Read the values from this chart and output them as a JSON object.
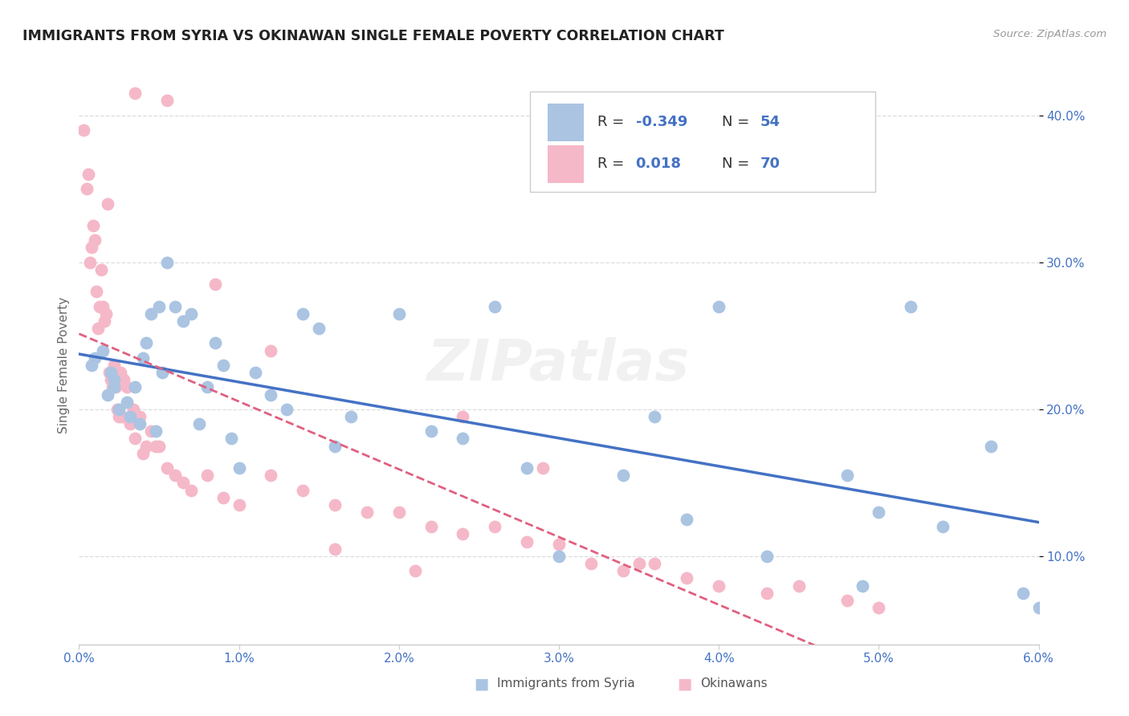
{
  "title": "IMMIGRANTS FROM SYRIA VS OKINAWAN SINGLE FEMALE POVERTY CORRELATION CHART",
  "source": "Source: ZipAtlas.com",
  "ylabel": "Single Female Poverty",
  "legend_labels": [
    "Immigrants from Syria",
    "Okinawans"
  ],
  "legend_R_syria": "-0.349",
  "legend_N_syria": "54",
  "legend_R_okinawa": "0.018",
  "legend_N_okinawa": "70",
  "color_syria": "#aac4e2",
  "color_okinawa": "#f5b8c8",
  "color_line_syria": "#4472c4",
  "color_line_okinawa": "#e06080",
  "color_text_blue": "#4472c4",
  "color_title": "#222222",
  "color_source": "#999999",
  "background_color": "#ffffff",
  "grid_color": "#dddddd",
  "xlim": [
    0.0,
    0.06
  ],
  "ylim": [
    0.04,
    0.42
  ],
  "x_ticks": [
    0.0,
    0.01,
    0.02,
    0.03,
    0.04,
    0.05,
    0.06
  ],
  "y_ticks": [
    0.1,
    0.2,
    0.3,
    0.4
  ],
  "syria_x": [
    0.0008,
    0.001,
    0.0015,
    0.0018,
    0.002,
    0.0022,
    0.0022,
    0.0025,
    0.003,
    0.0032,
    0.0035,
    0.0038,
    0.004,
    0.0042,
    0.0045,
    0.0048,
    0.005,
    0.0052,
    0.0055,
    0.006,
    0.0065,
    0.007,
    0.0075,
    0.008,
    0.0085,
    0.009,
    0.0095,
    0.01,
    0.011,
    0.012,
    0.013,
    0.014,
    0.015,
    0.016,
    0.017,
    0.02,
    0.022,
    0.024,
    0.026,
    0.028,
    0.03,
    0.034,
    0.036,
    0.038,
    0.04,
    0.043,
    0.048,
    0.049,
    0.05,
    0.052,
    0.054,
    0.057,
    0.059,
    0.06
  ],
  "syria_y": [
    0.23,
    0.235,
    0.24,
    0.21,
    0.225,
    0.215,
    0.22,
    0.2,
    0.205,
    0.195,
    0.215,
    0.19,
    0.235,
    0.245,
    0.265,
    0.185,
    0.27,
    0.225,
    0.3,
    0.27,
    0.26,
    0.265,
    0.19,
    0.215,
    0.245,
    0.23,
    0.18,
    0.16,
    0.225,
    0.21,
    0.2,
    0.265,
    0.255,
    0.175,
    0.195,
    0.265,
    0.185,
    0.18,
    0.27,
    0.16,
    0.1,
    0.155,
    0.195,
    0.125,
    0.27,
    0.1,
    0.155,
    0.08,
    0.13,
    0.27,
    0.12,
    0.175,
    0.075,
    0.065
  ],
  "okinawa_x": [
    0.0003,
    0.0005,
    0.0006,
    0.0007,
    0.0008,
    0.0009,
    0.001,
    0.0011,
    0.0012,
    0.0013,
    0.0014,
    0.0015,
    0.0016,
    0.0017,
    0.0018,
    0.0019,
    0.002,
    0.0021,
    0.0022,
    0.0023,
    0.0024,
    0.0025,
    0.0026,
    0.0027,
    0.0028,
    0.003,
    0.0032,
    0.0034,
    0.0035,
    0.0038,
    0.004,
    0.0042,
    0.0045,
    0.0048,
    0.005,
    0.0055,
    0.006,
    0.0065,
    0.007,
    0.008,
    0.009,
    0.01,
    0.012,
    0.014,
    0.016,
    0.018,
    0.02,
    0.022,
    0.024,
    0.026,
    0.028,
    0.03,
    0.032,
    0.034,
    0.036,
    0.038,
    0.04,
    0.043,
    0.048,
    0.05,
    0.0035,
    0.0055,
    0.0085,
    0.012,
    0.016,
    0.021,
    0.024,
    0.029,
    0.035,
    0.045
  ],
  "okinawa_y": [
    0.39,
    0.35,
    0.36,
    0.3,
    0.31,
    0.325,
    0.315,
    0.28,
    0.255,
    0.27,
    0.295,
    0.27,
    0.26,
    0.265,
    0.34,
    0.225,
    0.22,
    0.215,
    0.23,
    0.215,
    0.2,
    0.195,
    0.225,
    0.195,
    0.22,
    0.215,
    0.19,
    0.2,
    0.18,
    0.195,
    0.17,
    0.175,
    0.185,
    0.175,
    0.175,
    0.16,
    0.155,
    0.15,
    0.145,
    0.155,
    0.14,
    0.135,
    0.155,
    0.145,
    0.135,
    0.13,
    0.13,
    0.12,
    0.115,
    0.12,
    0.11,
    0.108,
    0.095,
    0.09,
    0.095,
    0.085,
    0.08,
    0.075,
    0.07,
    0.065,
    0.415,
    0.41,
    0.285,
    0.24,
    0.105,
    0.09,
    0.195,
    0.16,
    0.095,
    0.08
  ]
}
